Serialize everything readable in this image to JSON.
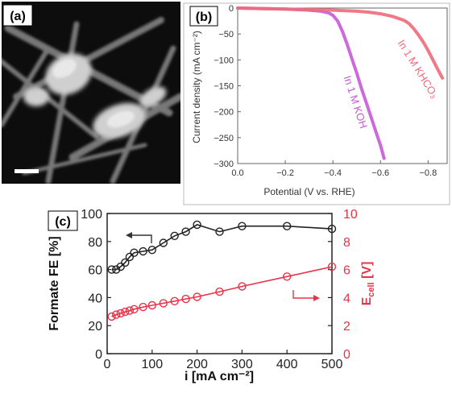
{
  "colors": {
    "koh": "#c65ad8",
    "khco3": "#f06a7a",
    "fe": "#222222",
    "ecell": "#e8344a",
    "arrow_fe": "#333333",
    "arrow_ecell": "#e8344a"
  },
  "panel_a": {
    "label": "(a)",
    "icon": "tem-micrograph-image"
  },
  "chart_data": [
    {
      "id": "b",
      "type": "line",
      "panel_label": "(b)",
      "xlabel": "Potential (V vs. RHE)",
      "ylabel": "Current density (mA cm⁻²)",
      "xlim": [
        0.0,
        -0.88
      ],
      "ylim": [
        -300,
        0
      ],
      "xticks": [
        "0.0",
        "−0.2",
        "−0.4",
        "−0.6",
        "−0.8"
      ],
      "xtick_values": [
        0.0,
        -0.2,
        -0.4,
        -0.6,
        -0.8
      ],
      "yticks": [
        "0",
        "−50",
        "−100",
        "−150",
        "−200",
        "−250",
        "−300"
      ],
      "ytick_values": [
        0,
        -50,
        -100,
        -150,
        -200,
        -250,
        -300
      ],
      "series": [
        {
          "name": "In 1 M KOH",
          "x": [
            0.0,
            -0.1,
            -0.2,
            -0.3,
            -0.35,
            -0.38,
            -0.4,
            -0.42,
            -0.44,
            -0.46,
            -0.48,
            -0.5,
            -0.52,
            -0.54,
            -0.56,
            -0.58,
            -0.6,
            -0.615
          ],
          "y": [
            0,
            -1,
            -2,
            -4,
            -6,
            -9,
            -14,
            -25,
            -45,
            -70,
            -98,
            -125,
            -155,
            -182,
            -210,
            -238,
            -265,
            -290
          ]
        },
        {
          "name": "In 1 M KHCO₃",
          "x": [
            0.0,
            -0.2,
            -0.4,
            -0.5,
            -0.55,
            -0.6,
            -0.65,
            -0.7,
            -0.72,
            -0.74,
            -0.76,
            -0.78,
            -0.8,
            -0.82,
            -0.84,
            -0.86
          ],
          "y": [
            0,
            -2,
            -4,
            -6,
            -8,
            -11,
            -16,
            -24,
            -30,
            -40,
            -52,
            -66,
            -82,
            -100,
            -118,
            -135
          ]
        }
      ]
    },
    {
      "id": "c",
      "type": "line",
      "panel_label": "(c)",
      "xlabel": "i [mA cm⁻²]",
      "ylabel": "Formate FE [%]",
      "ylabel_right": "E",
      "ylabel_right_sub": "cell",
      "ylabel_right_unit": " [V]",
      "xlim": [
        0,
        500
      ],
      "ylim": [
        0,
        100
      ],
      "ylim_right": [
        0,
        10
      ],
      "xticks": [
        "0",
        "100",
        "200",
        "300",
        "400",
        "500"
      ],
      "xtick_values": [
        0,
        100,
        200,
        300,
        400,
        500
      ],
      "yticks": [
        "0",
        "20",
        "40",
        "60",
        "80",
        "100"
      ],
      "ytick_values": [
        0,
        20,
        40,
        60,
        80,
        100
      ],
      "yticks_right": [
        "0",
        "2",
        "4",
        "6",
        "8",
        "10"
      ],
      "ytick_values_right": [
        0,
        2,
        4,
        6,
        8,
        10
      ],
      "series": [
        {
          "name": "Formate FE",
          "axis": "left",
          "x": [
            10,
            20,
            30,
            40,
            50,
            60,
            80,
            100,
            125,
            150,
            175,
            200,
            250,
            300,
            400,
            500
          ],
          "y": [
            60,
            60,
            62,
            65,
            69,
            72,
            73,
            74,
            79,
            84,
            87,
            92,
            87,
            91,
            91,
            89
          ]
        },
        {
          "name": "Ecell",
          "axis": "right",
          "x": [
            10,
            20,
            30,
            40,
            50,
            60,
            80,
            100,
            125,
            150,
            175,
            200,
            250,
            300,
            400,
            500
          ],
          "y": [
            2.65,
            2.78,
            2.88,
            2.98,
            3.07,
            3.17,
            3.33,
            3.45,
            3.6,
            3.75,
            3.9,
            4.05,
            4.42,
            4.8,
            5.5,
            6.2
          ]
        }
      ]
    }
  ]
}
